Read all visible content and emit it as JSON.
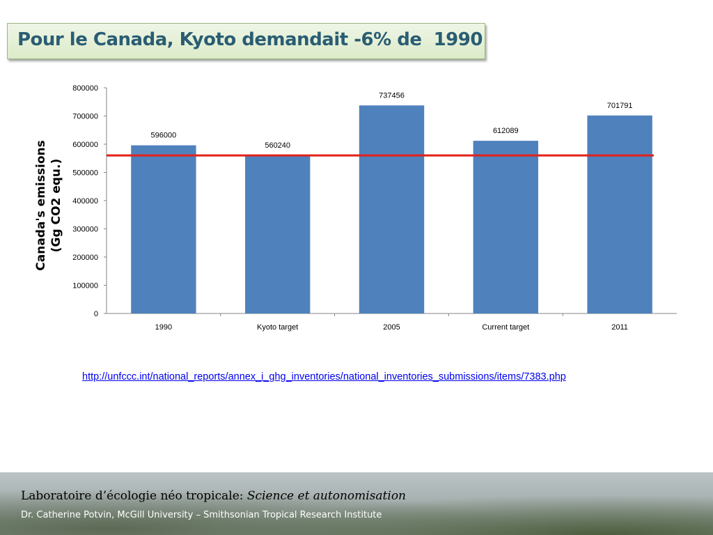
{
  "slide": {
    "title": "Pour le Canada, Kyoto demandait -6% de  1990"
  },
  "chart_data": {
    "type": "bar",
    "categories": [
      "1990",
      "Kyoto target",
      "2005",
      "Current target",
      "2011"
    ],
    "values": [
      596000,
      560240,
      737456,
      612089,
      701791
    ],
    "data_labels": [
      "596000",
      "560240",
      "737456",
      "612089",
      "701791"
    ],
    "ylabel_lines": [
      "Canada's emissions",
      "(Gg CO2 equ.)"
    ],
    "ylim": [
      0,
      800000
    ],
    "yticks": [
      0,
      100000,
      200000,
      300000,
      400000,
      500000,
      600000,
      700000,
      800000
    ],
    "reference_line_value": 560240,
    "bar_color": "#4f81bd",
    "reference_line_color": "#e3201b",
    "grid": false,
    "legend": "none"
  },
  "source": {
    "url_text": "http://unfccc.int/national_reports/annex_i_ghg_inventories/national_inventories_submissions/items/7383.php"
  },
  "footer": {
    "main_text": "Laboratoire d’écologie néo tropicale: ",
    "main_italic": "Science et autonomisation",
    "sub_text": "Dr. Catherine Potvin, McGill University – Smithsonian Tropical Research Institute"
  }
}
